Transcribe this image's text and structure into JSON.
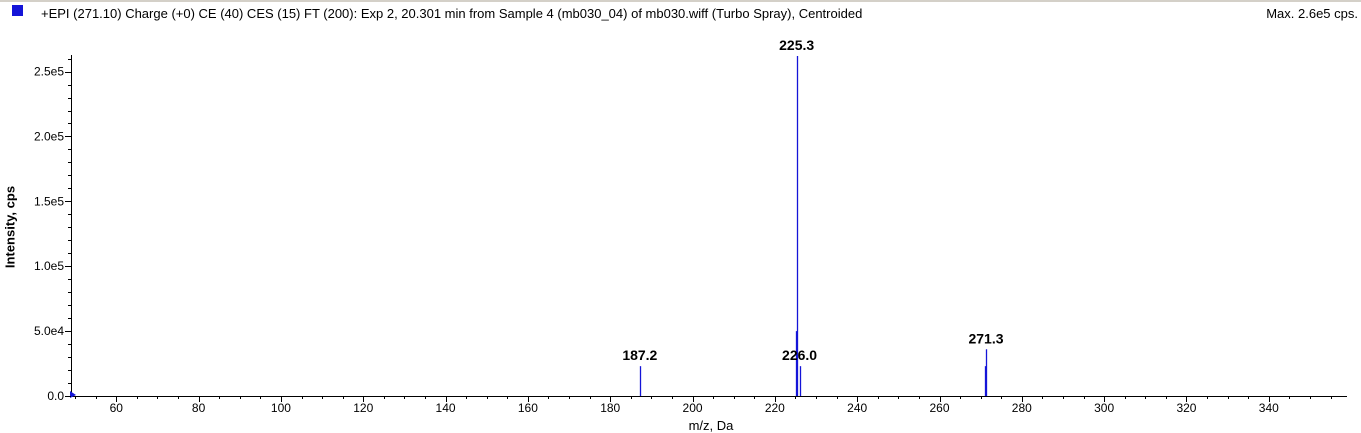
{
  "header": {
    "title": "+EPI (271.10) Charge (+0) CE (40) CES (15) FT (200): Exp 2, 20.301 min from Sample 4 (mb030_04) of mb030.wiff (Turbo Spray), Centroided",
    "max_label": "Max. 2.6e5 cps.",
    "series_color": "#1414d8"
  },
  "chart_data": {
    "type": "bar",
    "title": "+EPI (271.10) Charge (+0) CE (40) CES (15) FT (200): Exp 2, 20.301 min from Sample 4 (mb030_04) of mb030.wiff (Turbo Spray), Centroided",
    "xlabel": "m/z, Da",
    "ylabel": "Intensity, cps",
    "xlim": [
      49,
      359
    ],
    "ylim": [
      0,
      262000
    ],
    "x_ticks": [
      60,
      80,
      100,
      120,
      140,
      160,
      180,
      200,
      220,
      240,
      260,
      280,
      300,
      320,
      340
    ],
    "x_tick_labels": [
      "60",
      "80",
      "100",
      "120",
      "140",
      "160",
      "180",
      "200",
      "220",
      "240",
      "260",
      "280",
      "300",
      "320",
      "340"
    ],
    "y_ticks": [
      0,
      50000,
      100000,
      150000,
      200000,
      250000
    ],
    "y_tick_labels": [
      "0.0",
      "5.0e4",
      "1.0e5",
      "1.5e5",
      "2.0e5",
      "2.5e5"
    ],
    "grid": false,
    "series": [
      {
        "x": [
          187.2,
          225.1,
          225.3,
          226.0,
          271.1,
          271.3
        ],
        "values": [
          23000,
          50000,
          262000,
          23000,
          23000,
          36000
        ]
      }
    ],
    "labels": [
      {
        "x": 187.2,
        "text": "187.2"
      },
      {
        "x": 225.3,
        "text": "225.3"
      },
      {
        "x": 226.0,
        "text": "226.0"
      },
      {
        "x": 271.3,
        "text": "271.3"
      }
    ],
    "color": "#1414d8"
  }
}
